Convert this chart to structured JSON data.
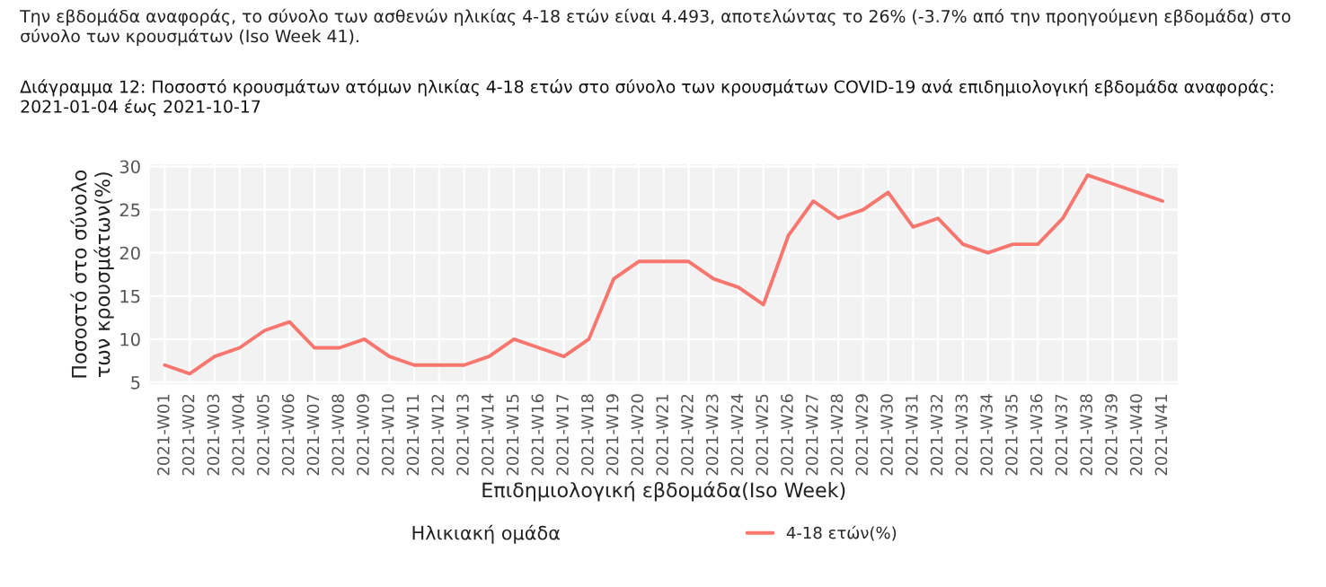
{
  "chart_data": {
    "type": "line",
    "title": "Διάγραμμα 12: Ποσοστό κρουσμάτων ατόμων ηλικίας 4-18 ετών στο σύνολο των κρουσμάτων COVID-19 ανά επιδημιολογική εβδομάδα αναφοράς: 2021-01-04 έως 2021-10-17",
    "annotations": [
      "Την εβδομάδα αναφοράς, το σύνολο των ασθενών ηλικίας 4-18 ετών είναι 4.493, αποτελώντας το 26% (-3.7% από την προηγούμενη εβδομάδα) στο σύνολο των κρουσμάτων (Iso Week 41)."
    ],
    "xlabel": "Επιδημιολογική εβδομάδα(Iso Week)",
    "ylabel": "Ποσοστό στο σύνολο\nτων κρουσμάτων(%)",
    "legend_title": "Ηλικιακή ομάδα",
    "categories": [
      "2021-W01",
      "2021-W02",
      "2021-W03",
      "2021-W04",
      "2021-W05",
      "2021-W06",
      "2021-W07",
      "2021-W08",
      "2021-W09",
      "2021-W10",
      "2021-W11",
      "2021-W12",
      "2021-W13",
      "2021-W14",
      "2021-W15",
      "2021-W16",
      "2021-W17",
      "2021-W18",
      "2021-W19",
      "2021-W20",
      "2021-W21",
      "2021-W22",
      "2021-W23",
      "2021-W24",
      "2021-W25",
      "2021-W26",
      "2021-W27",
      "2021-W28",
      "2021-W29",
      "2021-W30",
      "2021-W31",
      "2021-W32",
      "2021-W33",
      "2021-W34",
      "2021-W35",
      "2021-W36",
      "2021-W37",
      "2021-W38",
      "2021-W39",
      "2021-W40",
      "2021-W41"
    ],
    "series": [
      {
        "name": "4-18 ετών(%)",
        "color": "#f8766d",
        "values": [
          7,
          6,
          8,
          9,
          11,
          12,
          9,
          9,
          10,
          8,
          7,
          7,
          7,
          8,
          10,
          9,
          8,
          10,
          17,
          19,
          19,
          19,
          17,
          16,
          14,
          22,
          26,
          24,
          25,
          27,
          23,
          24,
          21,
          20,
          21,
          21,
          24,
          29,
          28,
          27,
          26
        ]
      }
    ],
    "ylim": [
      4.75,
      30.25
    ],
    "yticks": [
      5,
      10,
      15,
      20,
      25,
      30
    ],
    "grid": true,
    "legend": "bottom",
    "marker": "none",
    "line_style": "solid"
  }
}
